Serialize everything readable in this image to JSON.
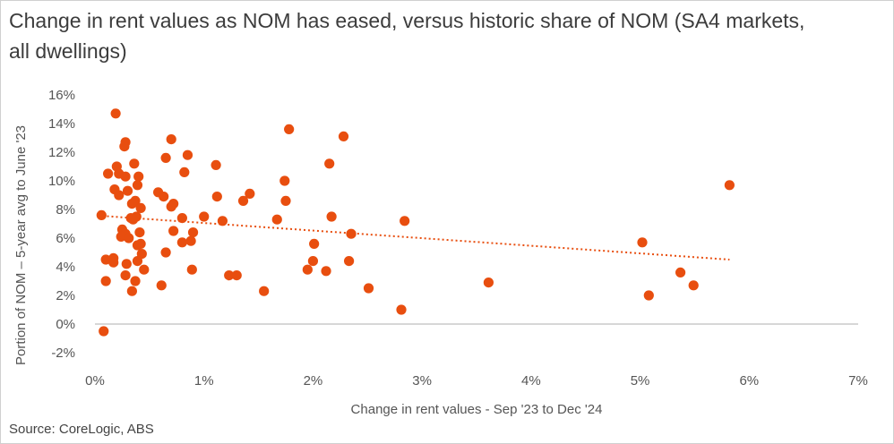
{
  "chart_data": {
    "type": "scatter",
    "title": "Change in rent values as NOM has eased, versus historic share of NOM (SA4 markets, all dwellings)",
    "xlabel": "Change in rent values - Sep '23 to Dec '24",
    "ylabel": "Portion of NOM –  5-year avg to June '23",
    "source": "Source: CoreLogic, ABS",
    "xlim": [
      0,
      7
    ],
    "ylim": [
      -2,
      16
    ],
    "x_ticks": [
      0,
      1,
      2,
      3,
      4,
      5,
      6,
      7
    ],
    "y_ticks": [
      -2,
      0,
      2,
      4,
      6,
      8,
      10,
      12,
      14,
      16
    ],
    "x_tick_labels": [
      "0%",
      "1%",
      "2%",
      "3%",
      "4%",
      "5%",
      "6%",
      "7%"
    ],
    "y_tick_labels": [
      "-2%",
      "0%",
      "2%",
      "4%",
      "6%",
      "8%",
      "10%",
      "12%",
      "14%",
      "16%"
    ],
    "point_color": "#E84E0F",
    "trendline": {
      "style": "dotted",
      "color": "#E84E0F",
      "x": [
        0.07,
        5.82
      ],
      "y": [
        7.55,
        4.5
      ]
    },
    "points": [
      [
        0.19,
        14.7
      ],
      [
        0.28,
        12.7
      ],
      [
        0.27,
        12.4
      ],
      [
        0.2,
        11.0
      ],
      [
        0.12,
        10.5
      ],
      [
        0.22,
        10.5
      ],
      [
        0.28,
        10.3
      ],
      [
        0.36,
        11.2
      ],
      [
        0.4,
        10.3
      ],
      [
        0.39,
        9.7
      ],
      [
        0.18,
        9.4
      ],
      [
        0.22,
        9.0
      ],
      [
        0.3,
        9.3
      ],
      [
        0.37,
        8.6
      ],
      [
        0.34,
        8.4
      ],
      [
        0.42,
        8.1
      ],
      [
        0.38,
        7.5
      ],
      [
        0.33,
        7.4
      ],
      [
        0.35,
        7.3
      ],
      [
        0.06,
        7.6
      ],
      [
        0.25,
        6.6
      ],
      [
        0.28,
        6.3
      ],
      [
        0.24,
        6.1
      ],
      [
        0.31,
        6.0
      ],
      [
        0.41,
        6.4
      ],
      [
        0.39,
        5.5
      ],
      [
        0.42,
        5.6
      ],
      [
        0.43,
        4.9
      ],
      [
        0.17,
        4.6
      ],
      [
        0.1,
        4.5
      ],
      [
        0.17,
        4.3
      ],
      [
        0.29,
        4.2
      ],
      [
        0.39,
        4.4
      ],
      [
        0.45,
        3.8
      ],
      [
        0.28,
        3.4
      ],
      [
        0.1,
        3.0
      ],
      [
        0.37,
        3.0
      ],
      [
        0.34,
        2.3
      ],
      [
        0.08,
        -0.5
      ],
      [
        0.7,
        12.9
      ],
      [
        0.65,
        11.6
      ],
      [
        0.82,
        10.6
      ],
      [
        0.85,
        11.8
      ],
      [
        0.58,
        9.2
      ],
      [
        0.63,
        8.9
      ],
      [
        0.72,
        8.4
      ],
      [
        0.7,
        8.2
      ],
      [
        0.8,
        7.4
      ],
      [
        0.72,
        6.5
      ],
      [
        0.9,
        6.4
      ],
      [
        0.8,
        5.7
      ],
      [
        0.88,
        5.8
      ],
      [
        0.65,
        5.0
      ],
      [
        0.61,
        2.7
      ],
      [
        0.89,
        3.8
      ],
      [
        1.0,
        7.5
      ],
      [
        1.11,
        11.1
      ],
      [
        1.12,
        8.9
      ],
      [
        1.17,
        7.2
      ],
      [
        1.36,
        8.6
      ],
      [
        1.42,
        9.1
      ],
      [
        1.23,
        3.4
      ],
      [
        1.3,
        3.4
      ],
      [
        1.55,
        2.3
      ],
      [
        1.67,
        7.3
      ],
      [
        1.78,
        13.6
      ],
      [
        1.74,
        10.0
      ],
      [
        1.75,
        8.6
      ],
      [
        2.15,
        11.2
      ],
      [
        2.28,
        13.1
      ],
      [
        2.17,
        7.5
      ],
      [
        2.35,
        6.3
      ],
      [
        2.01,
        5.6
      ],
      [
        2.0,
        4.4
      ],
      [
        1.95,
        3.8
      ],
      [
        2.12,
        3.7
      ],
      [
        2.33,
        4.4
      ],
      [
        2.51,
        2.5
      ],
      [
        2.84,
        7.2
      ],
      [
        2.81,
        1.0
      ],
      [
        3.61,
        2.9
      ],
      [
        5.02,
        5.7
      ],
      [
        5.08,
        2.0
      ],
      [
        5.37,
        3.6
      ],
      [
        5.49,
        2.7
      ],
      [
        5.82,
        9.7
      ]
    ]
  }
}
